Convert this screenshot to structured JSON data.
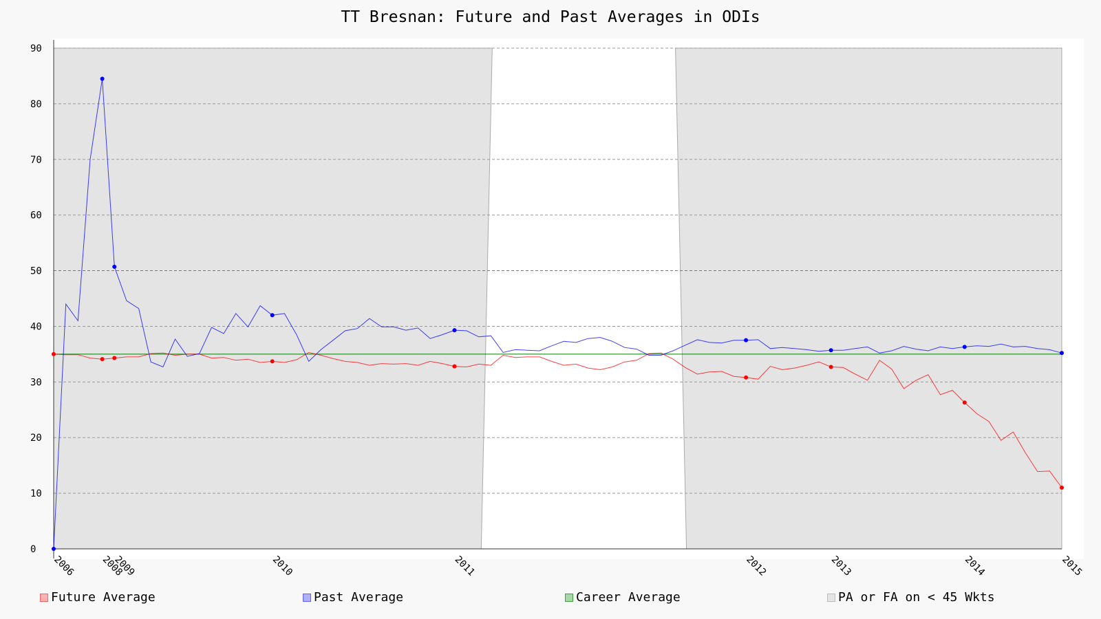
{
  "chart_data": {
    "type": "line",
    "title": "TT Bresnan: Future and Past Averages in ODIs",
    "ylim": [
      0,
      90
    ],
    "yticks": [
      0,
      10,
      20,
      30,
      40,
      50,
      60,
      70,
      80,
      90
    ],
    "xticks": [
      {
        "x": 0,
        "label": "2006"
      },
      {
        "x": 4,
        "label": "2008"
      },
      {
        "x": 5,
        "label": "2009"
      },
      {
        "x": 18,
        "label": "2010"
      },
      {
        "x": 33,
        "label": "2011"
      },
      {
        "x": 57,
        "label": "2012"
      },
      {
        "x": 64,
        "label": "2013"
      },
      {
        "x": 75,
        "label": "2014"
      },
      {
        "x": 83,
        "label": "2015"
      }
    ],
    "xlim": [
      0,
      83
    ],
    "grid": true,
    "legend_position": "bottom",
    "career_average": 35.0,
    "shaded_regions": [
      {
        "x0": 0,
        "x1": 35.2
      },
      {
        "x0": 52.1,
        "x1": 83
      }
    ],
    "series": [
      {
        "name": "Future Average",
        "color": "#ff0000",
        "values": [
          35.0,
          34.9,
          34.9,
          34.3,
          34.1,
          34.3,
          34.5,
          34.5,
          35.1,
          35.2,
          34.8,
          35.0,
          35.0,
          34.3,
          34.4,
          33.9,
          34.1,
          33.5,
          33.7,
          33.5,
          34.0,
          35.3,
          34.8,
          34.2,
          33.7,
          33.5,
          33.0,
          33.3,
          33.2,
          33.3,
          33.0,
          33.7,
          33.3,
          32.8,
          32.7,
          33.2,
          33.0,
          34.8,
          34.4,
          34.5,
          34.5,
          33.7,
          33.0,
          33.2,
          32.5,
          32.2,
          32.7,
          33.6,
          33.9,
          35.1,
          35.2,
          34.1,
          32.6,
          31.4,
          31.8,
          31.9,
          31.0,
          30.8,
          30.5,
          32.8,
          32.2,
          32.5,
          33.0,
          33.6,
          32.7,
          32.6,
          31.4,
          30.3,
          33.9,
          32.3,
          28.8,
          30.3,
          31.3,
          27.7,
          28.5,
          26.3,
          24.3,
          22.9,
          19.5,
          21.0,
          17.3,
          13.9,
          14.0,
          11.0
        ],
        "markers": [
          0,
          4,
          5,
          18,
          33,
          57,
          64,
          75,
          83
        ]
      },
      {
        "name": "Past Average",
        "color": "#0000ff",
        "values": [
          0.0,
          44.0,
          41.0,
          70.0,
          84.5,
          50.7,
          44.6,
          43.2,
          33.6,
          32.7,
          37.7,
          34.6,
          35.1,
          39.8,
          38.7,
          42.3,
          39.9,
          43.7,
          42.0,
          42.3,
          38.5,
          33.7,
          35.8,
          37.5,
          39.2,
          39.6,
          41.4,
          39.9,
          39.9,
          39.3,
          39.7,
          37.8,
          38.5,
          39.3,
          39.2,
          38.1,
          38.3,
          35.3,
          35.8,
          35.7,
          35.6,
          36.5,
          37.3,
          37.1,
          37.8,
          38.0,
          37.3,
          36.2,
          35.9,
          34.8,
          34.8,
          35.6,
          36.6,
          37.6,
          37.1,
          37.0,
          37.5,
          37.5,
          37.6,
          36.0,
          36.2,
          36.0,
          35.8,
          35.5,
          35.7,
          35.7,
          36.0,
          36.3,
          35.2,
          35.6,
          36.4,
          35.9,
          35.6,
          36.3,
          36.0,
          36.3,
          36.5,
          36.4,
          36.8,
          36.3,
          36.4,
          36.0,
          35.8,
          35.2
        ],
        "markers": [
          0,
          4,
          5,
          18,
          33,
          57,
          64,
          75,
          83
        ]
      }
    ],
    "legend": [
      {
        "label": "Future Average",
        "color": "#ff0000"
      },
      {
        "label": "Past Average",
        "color": "#0000ff"
      },
      {
        "label": "Career Average",
        "color": "#008000"
      },
      {
        "label": "PA or FA on < 45 Wkts",
        "color": "#bbbbbb"
      }
    ]
  }
}
